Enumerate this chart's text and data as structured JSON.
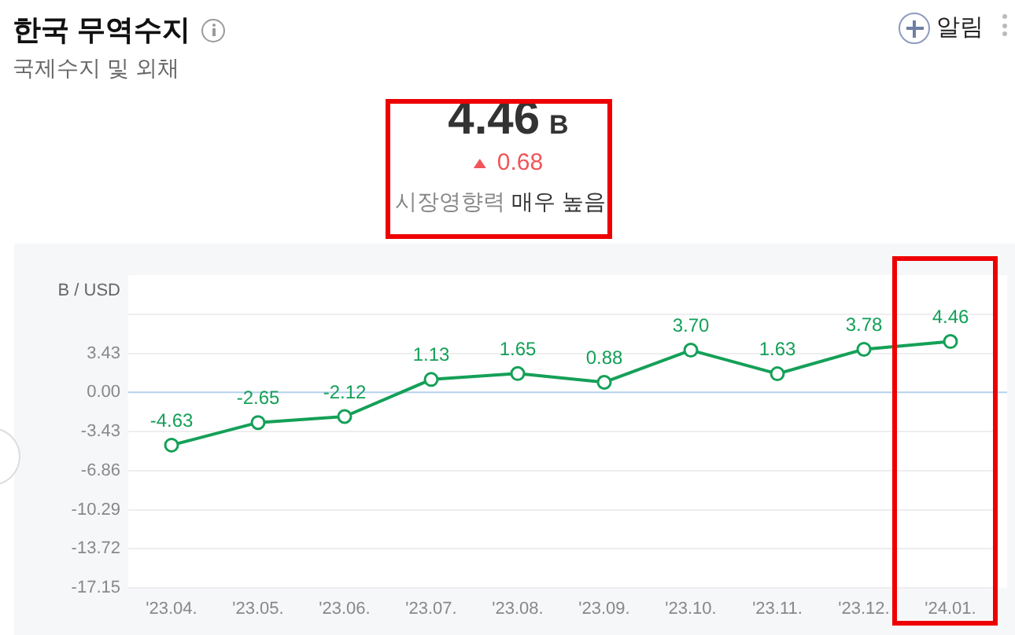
{
  "chart_data": {
    "type": "line",
    "title": "한국 무역수지",
    "subtitle": "국제수지 및 외채",
    "ylabel": "B / USD",
    "annotations": [
      "4.46 B",
      "0.68",
      "시장영향력 매우 높음",
      "알림"
    ],
    "categories": [
      "'23.04.",
      "'23.05.",
      "'23.06.",
      "'23.07.",
      "'23.08.",
      "'23.09.",
      "'23.10.",
      "'23.11.",
      "'23.12.",
      "'24.01."
    ],
    "series": [
      {
        "color": "#14a058",
        "values": [
          -4.63,
          -2.65,
          -2.12,
          1.13,
          1.65,
          0.88,
          3.7,
          1.63,
          3.78,
          4.46
        ],
        "value_labels": [
          "-4.63",
          "-2.65",
          "-2.12",
          "1.13",
          "1.65",
          "0.88",
          "3.70",
          "1.63",
          "3.78",
          "4.46"
        ]
      }
    ],
    "ylim": [
      -17.15,
      10.29
    ],
    "yticks": [
      -17.15,
      -13.72,
      -10.29,
      -6.86,
      -3.43,
      {
        "value": 0,
        "label": "0.00"
      },
      3.43,
      {
        "value": 6.86,
        "label": null
      }
    ],
    "grid": "y",
    "marker": "circle",
    "line_style": "solid",
    "legend": false,
    "ref_lines": [
      {
        "axis": "y",
        "value": 0,
        "color": "#b7d3f0"
      }
    ]
  }
}
